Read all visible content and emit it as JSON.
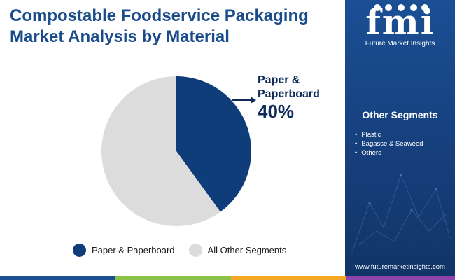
{
  "title": "Compostable Foodservice Packaging Market Analysis by Material",
  "chart_data": {
    "type": "pie",
    "title": "Compostable Foodservice Packaging Market Analysis by Material",
    "slices": [
      {
        "label": "Paper & Paperboard",
        "value": 40,
        "color": "#0f3d7a"
      },
      {
        "label": "All Other Segments",
        "value": 60,
        "color": "#dcdcdc"
      }
    ],
    "start_angle_deg": 0,
    "direction": "clockwise",
    "callout": {
      "label": "Paper &\nPaperboard",
      "value": "40%"
    },
    "legend_position": "bottom"
  },
  "legend": [
    {
      "label": "Paper & Paperboard",
      "color": "#0f3d7a"
    },
    {
      "label": "All Other Segments",
      "color": "#dcdcdc"
    }
  ],
  "sidebar": {
    "logo_text": "fmi",
    "logo_sub": "Future Market Insights",
    "segments_heading": "Other Segments",
    "segments": [
      "Plastic",
      "Bagasse & Seaweed",
      "Others"
    ],
    "url": "www.futuremarketinsights.com"
  },
  "bottom_bar_colors": [
    "#1a4f94",
    "#8bc34a",
    "#f5a623",
    "#8e44ad"
  ]
}
